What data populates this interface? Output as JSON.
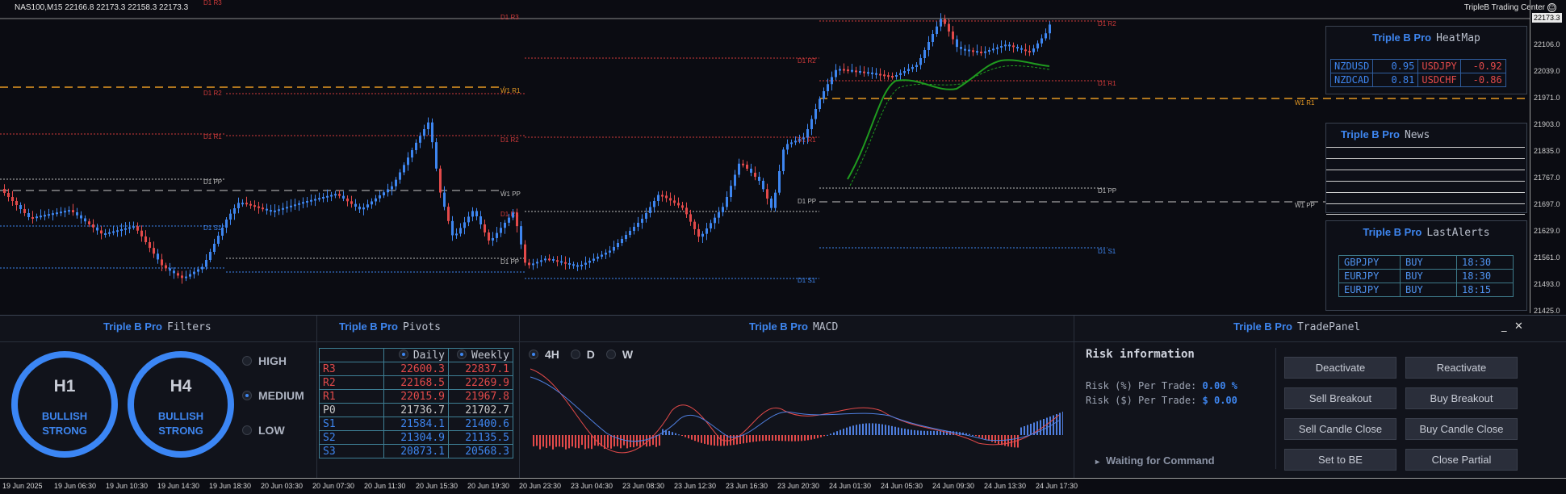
{
  "chart": {
    "symbol_info": "NAS100,M15  22166.8 22173.3 22158.3 22173.3",
    "broker": "TripleB Trading Center",
    "current_price": "22173.3",
    "price_axis": [
      "22106.0",
      "22039.0",
      "21971.0",
      "21903.0",
      "21835.0",
      "21767.0",
      "21697.0",
      "21629.0",
      "21561.0",
      "21493.0",
      "21425.0"
    ],
    "level_labels": {
      "d1_r2": "D1 R2",
      "d1_r1": "D1 R1",
      "d1_pp": "D1 PP",
      "d1_s1": "D1 S1",
      "w1_r1": "W1 R1",
      "w1_pp": "W1 PP",
      "d1_r3": "D1 R3"
    },
    "colors": {
      "bull": "#3e86f0",
      "bear": "#e34a4a",
      "daily_resistance": "#d23a3a",
      "weekly": "#e79a23",
      "ma": "#1f9b1f"
    }
  },
  "heatmap": {
    "brand": "Triple B Pro",
    "title": "HeatMap",
    "rows": [
      {
        "pair1": "NZDUSD",
        "val1": "0.95",
        "pair2": "USDJPY",
        "val2": "-0.92"
      },
      {
        "pair1": "NZDCAD",
        "val1": "0.81",
        "pair2": "USDCHF",
        "val2": "-0.86"
      }
    ]
  },
  "news": {
    "brand": "Triple B Pro",
    "title": "News"
  },
  "alerts": {
    "brand": "Triple B Pro",
    "title": "LastAlerts",
    "rows": [
      {
        "pair": "GBPJPY",
        "side": "BUY",
        "time": "18:30"
      },
      {
        "pair": "EURJPY",
        "side": "BUY",
        "time": "18:30"
      },
      {
        "pair": "EURJPY",
        "side": "BUY",
        "time": "18:15"
      }
    ]
  },
  "filters": {
    "brand": "Triple B Pro",
    "title": "Filters",
    "gauges": [
      {
        "tf": "H1",
        "bias": "BULLISH",
        "strength": "STRONG"
      },
      {
        "tf": "H4",
        "bias": "BULLISH",
        "strength": "STRONG"
      }
    ],
    "levels": [
      {
        "label": "HIGH",
        "selected": false
      },
      {
        "label": "MEDIUM",
        "selected": true
      },
      {
        "label": "LOW",
        "selected": false
      }
    ]
  },
  "pivots": {
    "brand": "Triple B Pro",
    "title": "Pivots",
    "col_daily": "Daily",
    "col_weekly": "Weekly",
    "rows": [
      {
        "name": "R3",
        "daily": "22600.3",
        "weekly": "22837.1",
        "kind": "r"
      },
      {
        "name": "R2",
        "daily": "22168.5",
        "weekly": "22269.9",
        "kind": "r"
      },
      {
        "name": "R1",
        "daily": "22015.9",
        "weekly": "21967.8",
        "kind": "r"
      },
      {
        "name": "P0",
        "daily": "21736.7",
        "weekly": "21702.7",
        "kind": "p"
      },
      {
        "name": "S1",
        "daily": "21584.1",
        "weekly": "21400.6",
        "kind": "s"
      },
      {
        "name": "S2",
        "daily": "21304.9",
        "weekly": "21135.5",
        "kind": "s"
      },
      {
        "name": "S3",
        "daily": "20873.1",
        "weekly": "20568.3",
        "kind": "s"
      }
    ]
  },
  "macd": {
    "brand": "Triple B Pro",
    "title": "MACD",
    "timeframes": [
      {
        "label": "4H",
        "selected": true
      },
      {
        "label": "D",
        "selected": false
      },
      {
        "label": "W",
        "selected": false
      }
    ]
  },
  "tradepanel": {
    "brand": "Triple B Pro",
    "title": "TradePanel",
    "minimize": "_",
    "close": "✕",
    "risk_title": "Risk information",
    "risk_pct_label": "Risk (%) Per Trade:",
    "risk_pct_value": "0.00 %",
    "risk_usd_label": "Risk ($) Per Trade:",
    "risk_usd_value": "$ 0.00",
    "status_arrow": "▸",
    "status": "Waiting for Command",
    "buttons": {
      "deactivate": "Deactivate",
      "reactivate": "Reactivate",
      "sell_breakout": "Sell Breakout",
      "buy_breakout": "Buy Breakout",
      "sell_candle_close": "Sell Candle Close",
      "buy_candle_close": "Buy Candle Close",
      "set_to_be": "Set to BE",
      "close_partial": "Close Partial"
    }
  },
  "time_axis": [
    "19 Jun 2025",
    "19 Jun 06:30",
    "19 Jun 10:30",
    "19 Jun 14:30",
    "19 Jun 18:30",
    "20 Jun 03:30",
    "20 Jun 07:30",
    "20 Jun 11:30",
    "20 Jun 15:30",
    "20 Jun 19:30",
    "20 Jun 23:30",
    "23 Jun 04:30",
    "23 Jun 08:30",
    "23 Jun 12:30",
    "23 Jun 16:30",
    "23 Jun 20:30",
    "24 Jun 01:30",
    "24 Jun 05:30",
    "24 Jun 09:30",
    "24 Jun 13:30",
    "24 Jun 17:30"
  ]
}
